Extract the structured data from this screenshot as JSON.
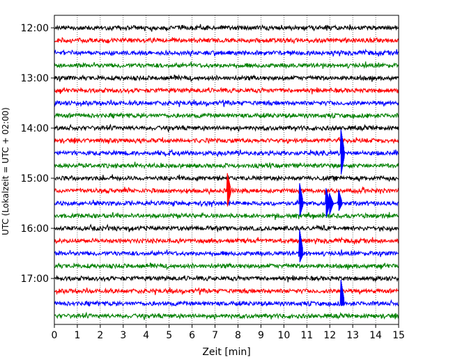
{
  "chart_data": {
    "type": "line",
    "title": "",
    "xlabel": "Zeit  [min]",
    "ylabel": "UTC (Lokalzeit = UTC + 02:00)",
    "xlim": [
      0,
      15
    ],
    "x_ticks": [
      "0",
      "1",
      "2",
      "3",
      "4",
      "5",
      "6",
      "7",
      "8",
      "9",
      "10",
      "11",
      "12",
      "13",
      "14",
      "15"
    ],
    "y_ticks": [
      "12:00",
      "13:00",
      "14:00",
      "15:00",
      "16:00",
      "17:00"
    ],
    "grid": "vertical dotted",
    "trace_colors": [
      "#000000",
      "#ff0000",
      "#0000ff",
      "#008000"
    ],
    "traces": [
      {
        "start": "12:00",
        "color": "#000000"
      },
      {
        "start": "12:15",
        "color": "#ff0000"
      },
      {
        "start": "12:30",
        "color": "#0000ff"
      },
      {
        "start": "12:45",
        "color": "#008000"
      },
      {
        "start": "13:00",
        "color": "#000000"
      },
      {
        "start": "13:15",
        "color": "#ff0000"
      },
      {
        "start": "13:30",
        "color": "#0000ff"
      },
      {
        "start": "13:45",
        "color": "#008000"
      },
      {
        "start": "14:00",
        "color": "#000000"
      },
      {
        "start": "14:15",
        "color": "#ff0000"
      },
      {
        "start": "14:30",
        "color": "#0000ff"
      },
      {
        "start": "14:45",
        "color": "#008000"
      },
      {
        "start": "15:00",
        "color": "#000000"
      },
      {
        "start": "15:15",
        "color": "#ff0000"
      },
      {
        "start": "15:30",
        "color": "#0000ff"
      },
      {
        "start": "15:45",
        "color": "#008000"
      },
      {
        "start": "16:00",
        "color": "#000000"
      },
      {
        "start": "16:15",
        "color": "#ff0000"
      },
      {
        "start": "16:30",
        "color": "#0000ff"
      },
      {
        "start": "16:45",
        "color": "#008000"
      },
      {
        "start": "17:00",
        "color": "#000000"
      },
      {
        "start": "17:15",
        "color": "#ff0000"
      },
      {
        "start": "17:30",
        "color": "#0000ff"
      },
      {
        "start": "17:45",
        "color": "#008000"
      }
    ],
    "events": [
      {
        "trace_start": "15:15",
        "time_min": 7.6,
        "amplitude_up": 1.4,
        "amplitude_down": 1.25
      },
      {
        "trace_start": "15:30",
        "time_min": 10.75,
        "amplitude_up": 1.6,
        "amplitude_down": 1.0
      },
      {
        "trace_start": "15:30",
        "time_min": 11.9,
        "amplitude_up": 1.2,
        "amplitude_down": 1.1
      },
      {
        "trace_start": "15:30",
        "time_min": 12.05,
        "amplitude_up": 0.8,
        "amplitude_down": 0.9
      },
      {
        "trace_start": "15:30",
        "time_min": 12.45,
        "amplitude_up": 1.05,
        "amplitude_down": 0.6
      },
      {
        "trace_start": "14:30",
        "time_min": 12.55,
        "amplitude_up": 1.9,
        "amplitude_down": 1.7
      },
      {
        "trace_start": "16:30",
        "time_min": 10.75,
        "amplitude_up": 1.9,
        "amplitude_down": 0.7
      },
      {
        "trace_start": "17:30",
        "time_min": 12.55,
        "amplitude_up": 1.9,
        "amplitude_down": 0.2
      }
    ]
  }
}
